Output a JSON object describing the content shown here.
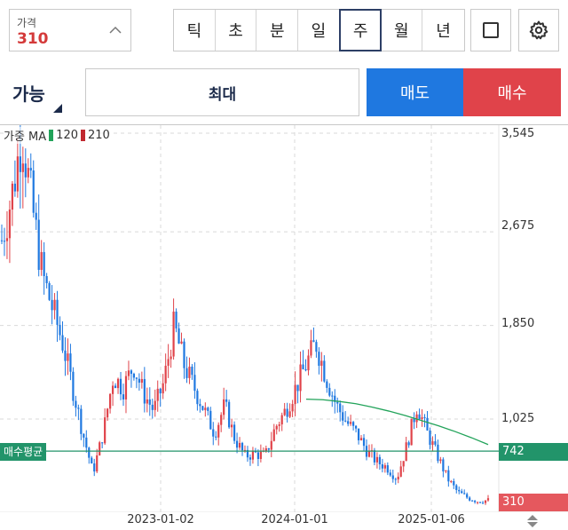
{
  "price_box": {
    "label": "가격",
    "value": "310"
  },
  "periods": [
    {
      "label": "틱",
      "active": false
    },
    {
      "label": "초",
      "active": false
    },
    {
      "label": "분",
      "active": false
    },
    {
      "label": "일",
      "active": false
    },
    {
      "label": "주",
      "active": true
    },
    {
      "label": "월",
      "active": false
    },
    {
      "label": "년",
      "active": false
    }
  ],
  "order": {
    "available_label": "가능",
    "quantity_label": "최대",
    "sell_label": "매도",
    "buy_label": "매수"
  },
  "legend": {
    "prefix": "가중 MA",
    "ma1_label": "120",
    "ma2_label": "210",
    "ma1_color": "#22a35a",
    "ma2_color": "#c0282f"
  },
  "avg_label": "매수평균",
  "avg_value": "742",
  "current_value": "310",
  "colors": {
    "up": "#e0434a",
    "down": "#1f78e0",
    "ma": "#22a35a",
    "avg_line": "#22946a",
    "accent": "#2d3f66"
  },
  "chart_data": {
    "type": "candlestick",
    "y_ticks": [
      "3,545",
      "2,675",
      "1,850",
      "1,025"
    ],
    "x_ticks": [
      "2023-01-02",
      "2024-01-01",
      "2025-01-06"
    ],
    "series": [
      {
        "name": "가중 MA 120",
        "kind": "line",
        "values": [
          1200,
          1195,
          1180,
          1160,
          1130,
          1095,
          1055,
          1010,
          965,
          915,
          860,
          800
        ]
      }
    ],
    "avg_price": 742,
    "current_price": 310,
    "close_path": [
      2600,
      3000,
      3545,
      2900,
      2300,
      2000,
      1700,
      1300,
      900,
      550,
      900,
      1400,
      1300,
      1500,
      1250,
      1100,
      1350,
      1850,
      1500,
      1300,
      1100,
      900,
      1150,
      850,
      700,
      720,
      700,
      950,
      1100,
      1300,
      1500,
      1700,
      1400,
      1150,
      1000,
      900,
      750,
      650,
      600,
      500,
      800,
      1150,
      900,
      700,
      500,
      380,
      330,
      300,
      310
    ]
  }
}
